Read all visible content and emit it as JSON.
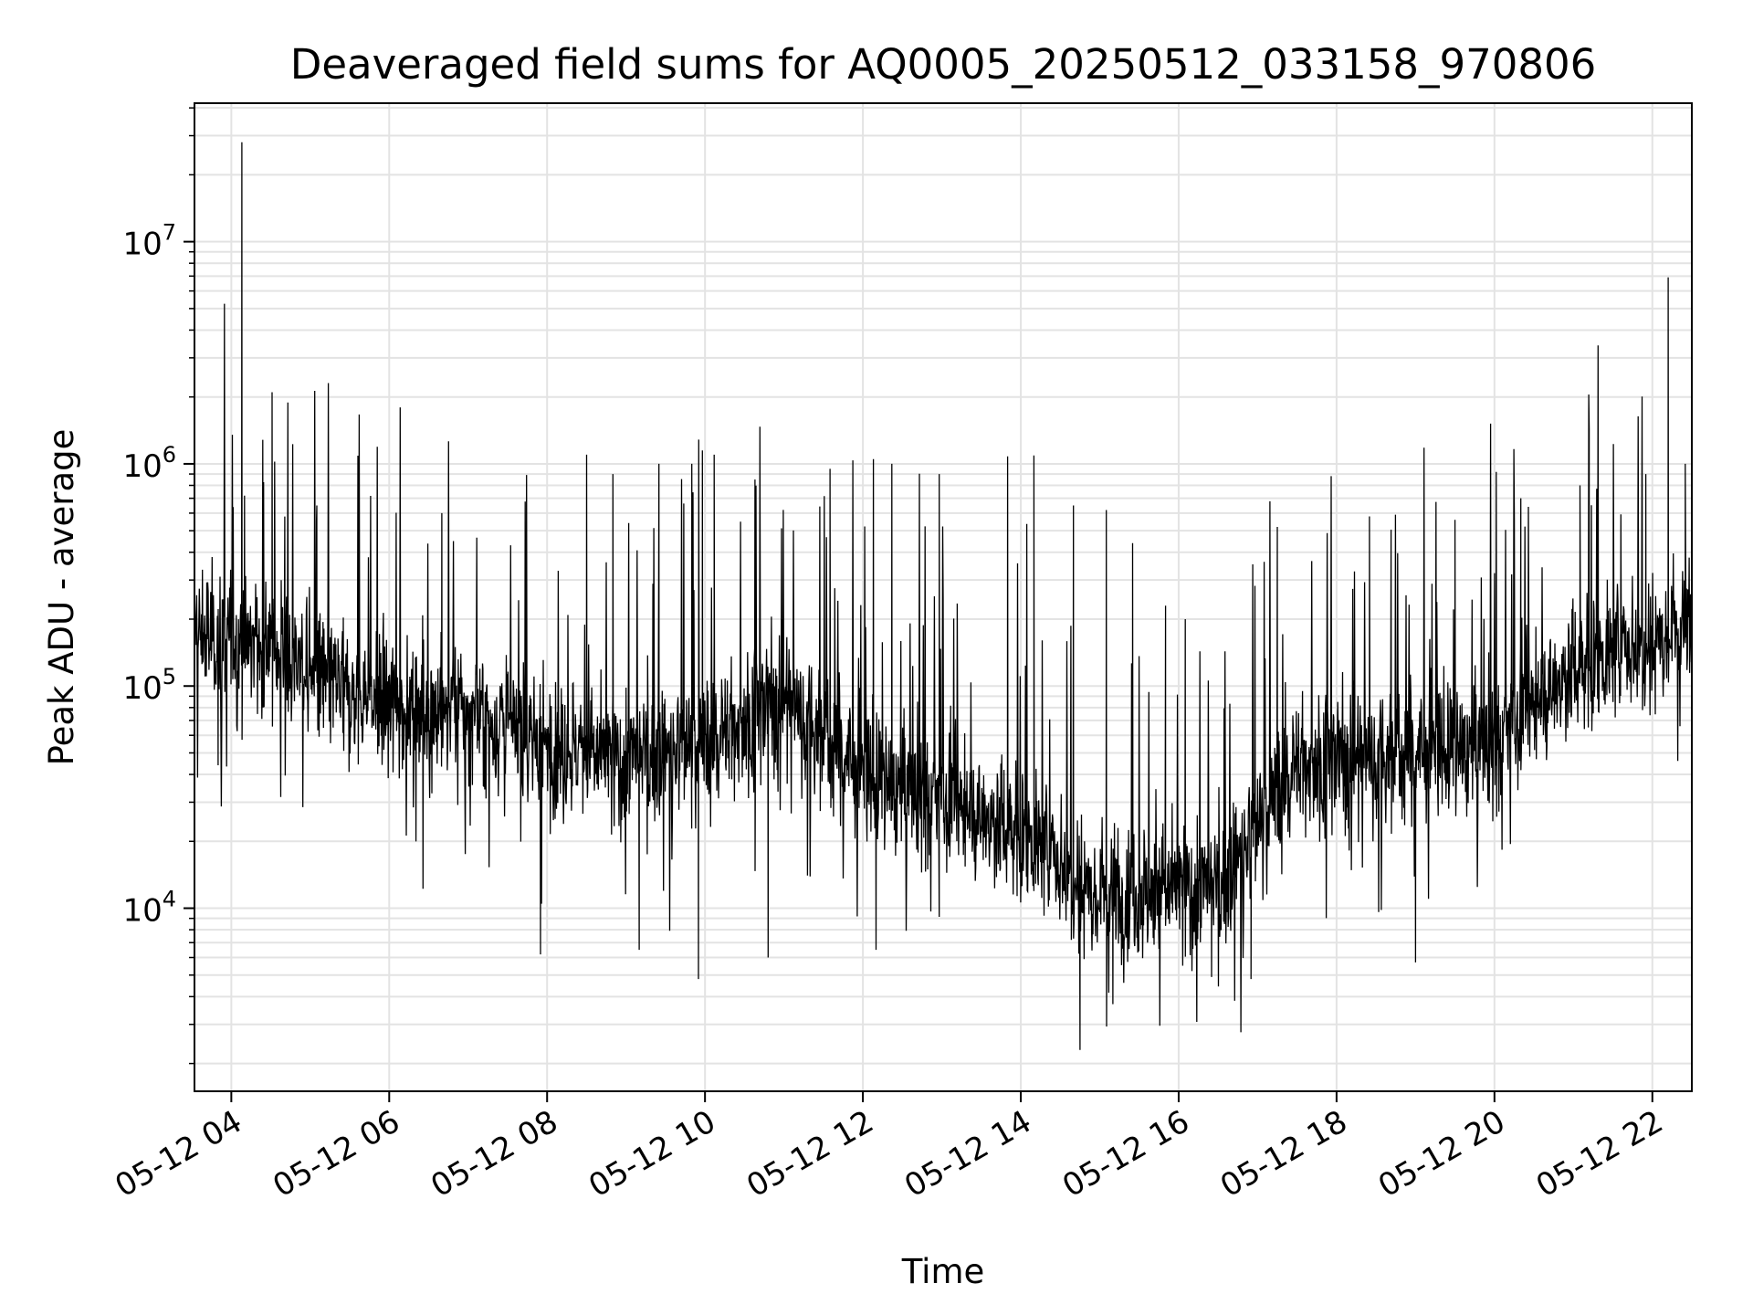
{
  "chart_data": {
    "type": "line",
    "title": "Deaveraged field sums for AQ0005_20250512_033158_970806",
    "xlabel": "Time",
    "ylabel": "Peak ADU - average",
    "yscale": "log",
    "ylim": [
      1500,
      42000000
    ],
    "xlim": [
      "2025-05-12 03:32",
      "2025-05-12 22:30"
    ],
    "x_ticks": [
      "05-12 04",
      "05-12 06",
      "05-12 08",
      "05-12 10",
      "05-12 12",
      "05-12 14",
      "05-12 16",
      "05-12 18",
      "05-12 20",
      "05-12 22"
    ],
    "x_tick_hours": [
      4,
      6,
      8,
      10,
      12,
      14,
      16,
      18,
      20,
      22
    ],
    "y_ticks": [
      {
        "value": 10000,
        "base": "10",
        "exp": "4"
      },
      {
        "value": 100000,
        "base": "10",
        "exp": "5"
      },
      {
        "value": 1000000,
        "base": "10",
        "exp": "6"
      },
      {
        "value": 10000000,
        "base": "10",
        "exp": "7"
      }
    ],
    "grid": true,
    "line_color": "#000000",
    "series": [
      {
        "baseline": [
          {
            "time": "2025-05-12 03:32",
            "value": 170000
          },
          {
            "time": "2025-05-12 04:30",
            "value": 150000
          },
          {
            "time": "2025-05-12 05:30",
            "value": 90000
          },
          {
            "time": "2025-05-12 07:00",
            "value": 75000
          },
          {
            "time": "2025-05-12 08:00",
            "value": 55000
          },
          {
            "time": "2025-05-12 09:00",
            "value": 45000
          },
          {
            "time": "2025-05-12 10:00",
            "value": 55000
          },
          {
            "time": "2025-05-12 11:00",
            "value": 90000
          },
          {
            "time": "2025-05-12 12:00",
            "value": 40000
          },
          {
            "time": "2025-05-12 13:00",
            "value": 30000
          },
          {
            "time": "2025-05-12 14:00",
            "value": 22000
          },
          {
            "time": "2025-05-12 15:00",
            "value": 12000
          },
          {
            "time": "2025-05-12 16:30",
            "value": 12000
          },
          {
            "time": "2025-05-12 17:30",
            "value": 45000
          },
          {
            "time": "2025-05-12 19:00",
            "value": 50000
          },
          {
            "time": "2025-05-12 20:00",
            "value": 55000
          },
          {
            "time": "2025-05-12 21:00",
            "value": 120000
          },
          {
            "time": "2025-05-12 22:30",
            "value": 200000
          }
        ],
        "spikes": [
          {
            "time": "2025-05-12 04:08",
            "value": 28000000
          },
          {
            "time": "2025-05-12 04:31",
            "value": 2100000
          },
          {
            "time": "2025-05-12 04:10",
            "value": 720000
          },
          {
            "time": "2025-05-12 05:05",
            "value": 650000
          },
          {
            "time": "2025-05-12 06:40",
            "value": 600000
          },
          {
            "time": "2025-05-12 08:30",
            "value": 1100000
          },
          {
            "time": "2025-05-12 08:50",
            "value": 900000
          },
          {
            "time": "2025-05-12 09:25",
            "value": 1000000
          },
          {
            "time": "2025-05-12 09:50",
            "value": 1000000
          },
          {
            "time": "2025-05-12 09:58",
            "value": 1150000
          },
          {
            "time": "2025-05-12 10:07",
            "value": 1100000
          },
          {
            "time": "2025-05-12 10:38",
            "value": 850000
          },
          {
            "time": "2025-05-12 11:35",
            "value": 950000
          },
          {
            "time": "2025-05-12 12:08",
            "value": 1050000
          },
          {
            "time": "2025-05-12 12:22",
            "value": 1000000
          },
          {
            "time": "2025-05-12 12:58",
            "value": 900000
          },
          {
            "time": "2025-05-12 13:50",
            "value": 1080000
          },
          {
            "time": "2025-05-12 14:10",
            "value": 1090000
          },
          {
            "time": "2025-05-12 14:40",
            "value": 650000
          },
          {
            "time": "2025-05-12 15:05",
            "value": 620000
          },
          {
            "time": "2025-05-12 15:25",
            "value": 440000
          },
          {
            "time": "2025-05-12 15:50",
            "value": 230000
          },
          {
            "time": "2025-05-12 16:05",
            "value": 200000
          },
          {
            "time": "2025-05-12 17:15",
            "value": 520000
          },
          {
            "time": "2025-05-12 18:25",
            "value": 580000
          },
          {
            "time": "2025-05-12 19:30",
            "value": 560000
          },
          {
            "time": "2025-05-12 20:20",
            "value": 700000
          },
          {
            "time": "2025-05-12 21:05",
            "value": 800000
          },
          {
            "time": "2025-05-12 21:12",
            "value": 1420000
          },
          {
            "time": "2025-05-12 21:55",
            "value": 900000
          },
          {
            "time": "2025-05-12 22:12",
            "value": 6900000
          },
          {
            "time": "2025-05-12 22:25",
            "value": 1000000
          }
        ],
        "dips": [
          {
            "time": "2025-05-12 03:50",
            "value": 44000
          },
          {
            "time": "2025-05-12 07:55",
            "value": 6200
          },
          {
            "time": "2025-05-12 09:10",
            "value": 6500
          },
          {
            "time": "2025-05-12 09:55",
            "value": 4800
          },
          {
            "time": "2025-05-12 10:48",
            "value": 6000
          },
          {
            "time": "2025-05-12 12:10",
            "value": 6500
          },
          {
            "time": "2025-05-12 14:45",
            "value": 2300
          },
          {
            "time": "2025-05-12 15:10",
            "value": 3700
          },
          {
            "time": "2025-05-12 16:25",
            "value": 4900
          },
          {
            "time": "2025-05-12 16:55",
            "value": 4800
          },
          {
            "time": "2025-05-12 19:00",
            "value": 5700
          }
        ]
      }
    ]
  }
}
